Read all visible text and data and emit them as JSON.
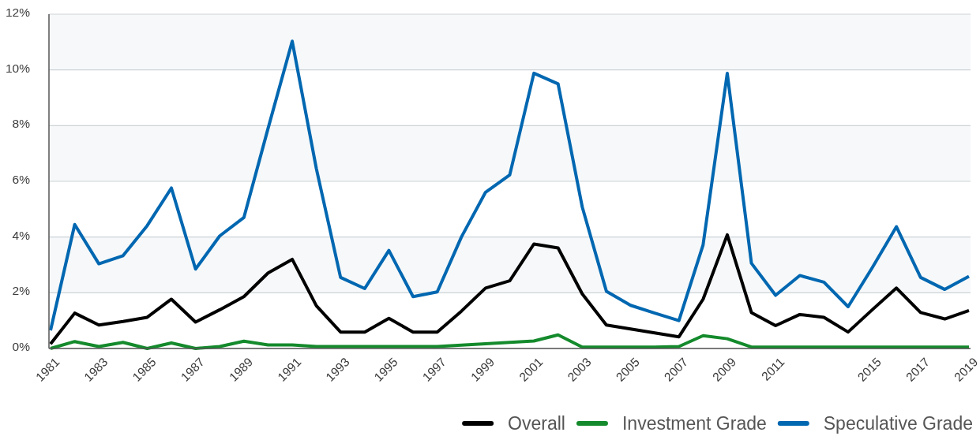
{
  "chart_data": {
    "type": "line",
    "x": [
      1981,
      1982,
      1983,
      1984,
      1985,
      1986,
      1987,
      1988,
      1989,
      1990,
      1991,
      1992,
      1993,
      1994,
      1995,
      1996,
      1997,
      1998,
      1999,
      2000,
      2001,
      2002,
      2003,
      2004,
      2005,
      2006,
      2007,
      2008,
      2009,
      2010,
      2011,
      2012,
      2013,
      2014,
      2015,
      2016,
      2017,
      2018,
      2019
    ],
    "xlim": [
      1981,
      2019
    ],
    "xticks": [
      1981,
      1983,
      1985,
      1987,
      1989,
      1991,
      1993,
      1995,
      1997,
      1999,
      2001,
      2003,
      2005,
      2007,
      2009,
      2011,
      2015,
      2017,
      2019
    ],
    "ylim": [
      0,
      12
    ],
    "yticks": [
      {
        "value": 0,
        "label": "0%"
      },
      {
        "value": 2,
        "label": "2%"
      },
      {
        "value": 4,
        "label": "4%"
      },
      {
        "value": 6,
        "label": "6%"
      },
      {
        "value": 8,
        "label": "8%"
      },
      {
        "value": 10,
        "label": "10%"
      },
      {
        "value": 12,
        "label": "12%"
      }
    ],
    "grid": "y",
    "bands": [
      {
        "axis": "y",
        "from": 2,
        "to": 4,
        "color": "#f6f8f9"
      },
      {
        "axis": "y",
        "from": 6,
        "to": 8,
        "color": "#f6f8f9"
      },
      {
        "axis": "y",
        "from": 10,
        "to": 12,
        "color": "#f6f8f9"
      }
    ],
    "legend": "bottom right",
    "series": [
      {
        "name": "Overall",
        "color": "#000000",
        "values": [
          0.16,
          1.27,
          0.84,
          0.97,
          1.12,
          1.77,
          0.95,
          1.39,
          1.86,
          2.71,
          3.2,
          1.53,
          0.59,
          0.59,
          1.08,
          0.59,
          0.59,
          1.34,
          2.17,
          2.43,
          3.75,
          3.61,
          1.96,
          0.84,
          0.7,
          0.56,
          0.42,
          1.77,
          4.08,
          1.29,
          0.82,
          1.22,
          1.12,
          0.59,
          1.39,
          2.17,
          1.29,
          1.06,
          1.36
        ]
      },
      {
        "name": "Investment Grade",
        "color": "#148a2c",
        "values": [
          0,
          0.25,
          0.07,
          0.22,
          0,
          0.2,
          0,
          0.07,
          0.26,
          0.13,
          0.13,
          0.07,
          0.07,
          0.07,
          0.07,
          0.07,
          0.07,
          0.12,
          0.17,
          0.22,
          0.27,
          0.49,
          0.05,
          0.05,
          0.05,
          0.05,
          0.07,
          0.46,
          0.35,
          0.05,
          0.05,
          0.05,
          0.05,
          0.05,
          0.05,
          0.05,
          0.05,
          0.05,
          0.05
        ]
      },
      {
        "name": "Speculative Grade",
        "color": "#0067b1",
        "values": [
          0.65,
          4.45,
          3.04,
          3.33,
          4.41,
          5.76,
          2.85,
          4.04,
          4.7,
          7.9,
          11.03,
          6.45,
          2.55,
          2.15,
          3.52,
          1.86,
          2.03,
          4.0,
          5.61,
          6.23,
          9.88,
          9.5,
          5.08,
          2.05,
          1.55,
          1.27,
          1.0,
          3.72,
          9.88,
          3.06,
          1.91,
          2.62,
          2.38,
          1.5,
          2.9,
          4.37,
          2.55,
          2.12,
          2.59
        ]
      }
    ]
  }
}
